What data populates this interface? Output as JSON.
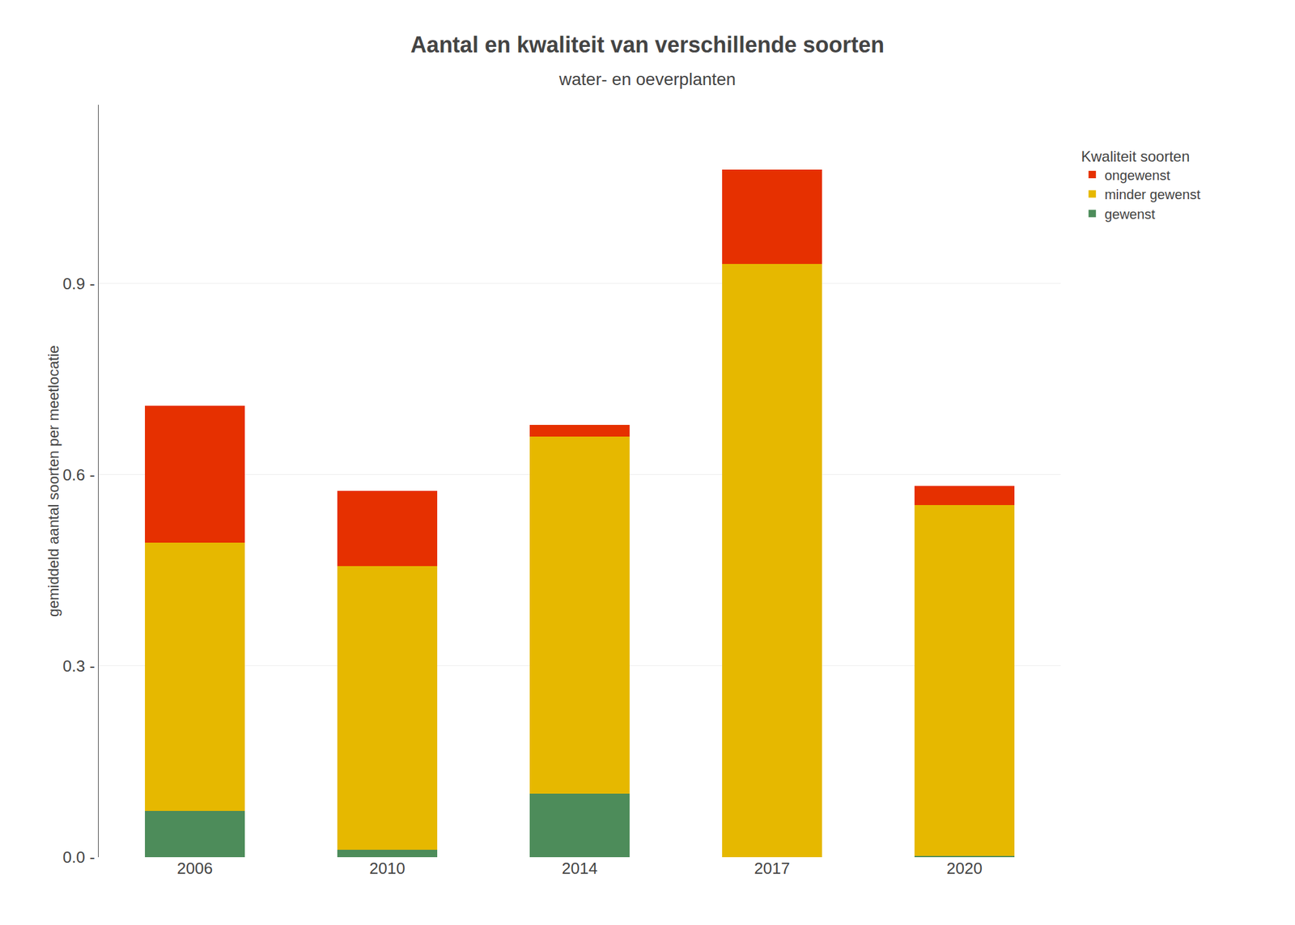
{
  "chart_data": {
    "type": "bar",
    "stacked": true,
    "title": "Aantal en kwaliteit van verschillende soorten",
    "subtitle": "water- en oeverplanten",
    "ylabel": "gemiddeld aantal soorten per meetlocatie",
    "legend_title": "Kwaliteit soorten",
    "legend": "right",
    "grid": true,
    "categories": [
      "2006",
      "2010",
      "2014",
      "2017",
      "2020"
    ],
    "series": [
      {
        "name": "gewenst",
        "color": "#4d8c5a",
        "values": [
          0.073,
          0.012,
          0.1,
          0.0,
          0.002
        ]
      },
      {
        "name": "minder gewenst",
        "color": "#e6b800",
        "values": [
          0.42,
          0.445,
          0.56,
          0.93,
          0.55
        ]
      },
      {
        "name": "ongewenst",
        "color": "#e63000",
        "values": [
          0.215,
          0.118,
          0.018,
          0.148,
          0.03
        ]
      }
    ],
    "ylim": [
      0,
      1.18
    ],
    "yticks": [
      {
        "value": 0.0,
        "label": "0.0 -"
      },
      {
        "value": 0.3,
        "label": "0.3 -"
      },
      {
        "value": 0.6,
        "label": "0.6 -"
      },
      {
        "value": 0.9,
        "label": "0.9 -"
      }
    ]
  }
}
